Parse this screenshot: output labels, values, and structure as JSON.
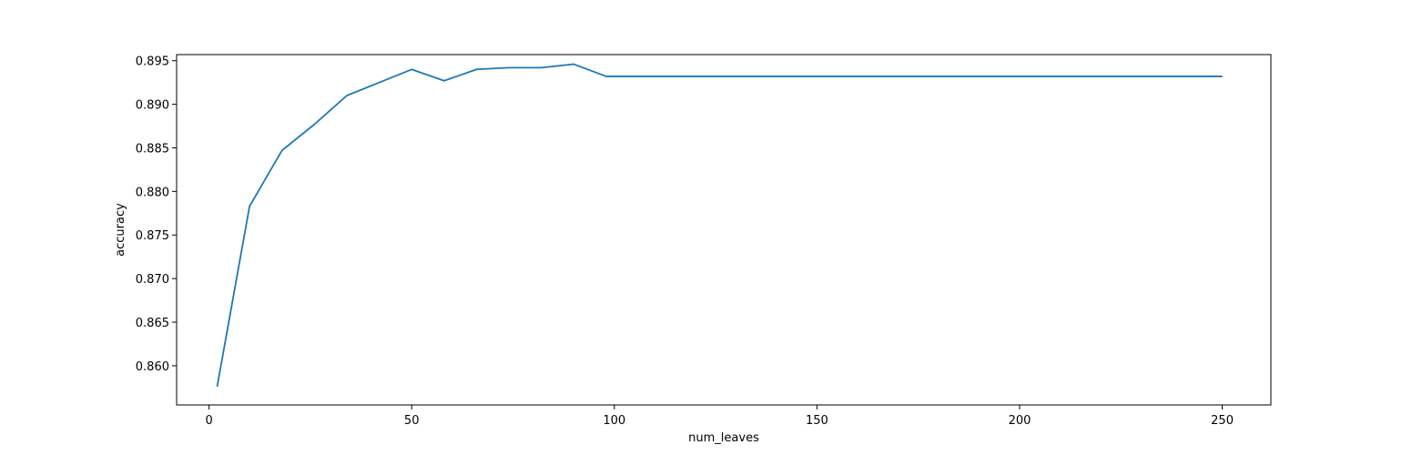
{
  "chart_data": {
    "type": "line",
    "title": "",
    "xlabel": "num_leaves",
    "ylabel": "accuracy",
    "xlim": [
      -8,
      262
    ],
    "ylim": [
      0.8555,
      0.8957
    ],
    "grid": false,
    "legend": "none",
    "x_ticks": [
      0,
      50,
      100,
      150,
      200,
      250
    ],
    "x_tick_labels": [
      "0",
      "50",
      "100",
      "150",
      "200",
      "250"
    ],
    "y_ticks": [
      0.86,
      0.865,
      0.87,
      0.875,
      0.88,
      0.885,
      0.89,
      0.895
    ],
    "y_tick_labels": [
      "0.860",
      "0.865",
      "0.870",
      "0.875",
      "0.880",
      "0.885",
      "0.890",
      "0.895"
    ],
    "series": [
      {
        "color": "#1f77b4",
        "x": [
          2,
          10,
          18,
          26,
          34,
          42,
          50,
          58,
          66,
          74,
          82,
          90,
          98,
          106,
          114,
          122,
          130,
          138,
          146,
          154,
          162,
          170,
          178,
          186,
          194,
          202,
          210,
          218,
          226,
          234,
          242,
          250
        ],
        "y": [
          0.8576,
          0.8783,
          0.8847,
          0.8877,
          0.891,
          0.8925,
          0.894,
          0.8927,
          0.894,
          0.8942,
          0.8942,
          0.8946,
          0.8932,
          0.8932,
          0.8932,
          0.8932,
          0.8932,
          0.8932,
          0.8932,
          0.8932,
          0.8932,
          0.8932,
          0.8932,
          0.8932,
          0.8932,
          0.8932,
          0.8932,
          0.8932,
          0.8932,
          0.8932,
          0.8932,
          0.8932
        ]
      }
    ]
  }
}
